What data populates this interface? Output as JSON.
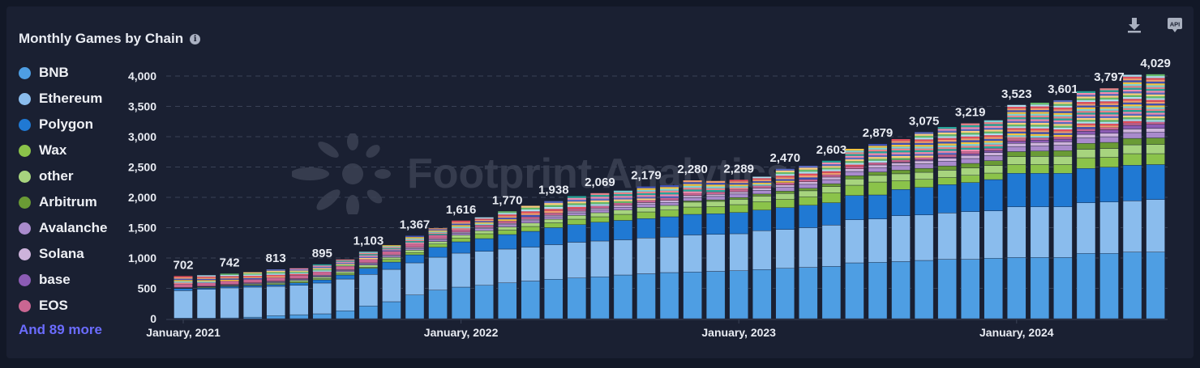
{
  "header": {
    "title": "Monthly Games by Chain",
    "info_icon": "info-icon",
    "download_icon": "download-icon",
    "api_icon": "api-icon",
    "api_label": "API"
  },
  "watermark": "Footprint Analytics",
  "legend": {
    "items": [
      {
        "label": "BNB",
        "color": "#4e9ee3"
      },
      {
        "label": "Ethereum",
        "color": "#8abced"
      },
      {
        "label": "Polygon",
        "color": "#2079d3"
      },
      {
        "label": "Wax",
        "color": "#8bc34a"
      },
      {
        "label": "other",
        "color": "#a7d47e"
      },
      {
        "label": "Arbitrum",
        "color": "#6a9b35"
      },
      {
        "label": "Avalanche",
        "color": "#a98bcc"
      },
      {
        "label": "Solana",
        "color": "#cdb3db"
      },
      {
        "label": "base",
        "color": "#8c5cb5"
      },
      {
        "label": "EOS",
        "color": "#c96692"
      }
    ],
    "more_label": "And 89 more"
  },
  "chart_data": {
    "type": "bar",
    "stacked": true,
    "title": "Monthly Games by Chain",
    "x_tick_labels": [
      "January, 2021",
      "January, 2022",
      "January, 2023",
      "January, 2024"
    ],
    "categories": [
      "2021-01",
      "2021-02",
      "2021-03",
      "2021-04",
      "2021-05",
      "2021-06",
      "2021-07",
      "2021-08",
      "2021-09",
      "2021-10",
      "2021-11",
      "2021-12",
      "2022-01",
      "2022-02",
      "2022-03",
      "2022-04",
      "2022-05",
      "2022-06",
      "2022-07",
      "2022-08",
      "2022-09",
      "2022-10",
      "2022-11",
      "2022-12",
      "2023-01",
      "2023-02",
      "2023-03",
      "2023-04",
      "2023-05",
      "2023-06",
      "2023-07",
      "2023-08",
      "2023-09",
      "2023-10",
      "2023-11",
      "2023-12",
      "2024-01",
      "2024-02",
      "2024-03",
      "2024-04",
      "2024-05",
      "2024-06",
      "2024-07"
    ],
    "y_ticks": [
      "0",
      "500",
      "1,000",
      "1,500",
      "2,000",
      "2,500",
      "3,000",
      "3,500",
      "4,000"
    ],
    "ylim": [
      0,
      4000
    ],
    "grid": true,
    "legend_position": "left",
    "totals": [
      702,
      715,
      742,
      765,
      813,
      830,
      895,
      975,
      1103,
      1210,
      1367,
      1490,
      1616,
      1670,
      1770,
      1860,
      1938,
      2020,
      2069,
      2110,
      2179,
      2200,
      2280,
      2270,
      2289,
      2340,
      2470,
      2520,
      2603,
      2800,
      2879,
      2960,
      3075,
      3160,
      3219,
      3270,
      3523,
      3560,
      3601,
      3750,
      3797,
      4020,
      4029
    ],
    "total_labels": [
      "702",
      "742",
      "813",
      "895",
      "1,103",
      "1,367",
      "1,616",
      "1,770",
      "1,938",
      "2,069",
      "2,179",
      "2,280",
      "2,289",
      "2,470",
      "2,603",
      "2,879",
      "3,075",
      "3,219",
      "3,523",
      "3,601",
      "3,797",
      "4,029"
    ],
    "series": [
      {
        "name": "BNB",
        "values": [
          10,
          10,
          12,
          25,
          50,
          65,
          80,
          130,
          210,
          280,
          390,
          470,
          520,
          550,
          590,
          620,
          650,
          670,
          690,
          720,
          740,
          760,
          770,
          780,
          790,
          810,
          830,
          845,
          862,
          920,
          929,
          942,
          960,
          978,
          978,
          996,
          1009,
          1009,
          1009,
          1076,
          1076,
          1098,
          1098
        ]
      },
      {
        "name": "Ethereum",
        "values": [
          452,
          474,
          495,
          495,
          483,
          486,
          507,
          523,
          519,
          533,
          530,
          543,
          560,
          561,
          557,
          560,
          570,
          590,
          590,
          580,
          590,
          585,
          610,
          610,
          610,
          640,
          640,
          655,
          680,
          711,
          715,
          756,
          751,
          764,
          786,
          782,
          835,
          835,
          835,
          835,
          848,
          844,
          866
        ]
      },
      {
        "name": "Polygon",
        "values": [
          36,
          21,
          23,
          25,
          27,
          39,
          53,
          67,
          102,
          120,
          133,
          165,
          187,
          209,
          240,
          260,
          280,
          290,
          310,
          320,
          320,
          335,
          340,
          340,
          350,
          340,
          360,
          370,
          369,
          400,
          396,
          431,
          453,
          467,
          480,
          515,
          552,
          552,
          552,
          565,
          574,
          587,
          576
        ]
      },
      {
        "name": "Wax",
        "values": [
          2,
          10,
          5,
          10,
          15,
          20,
          20,
          25,
          19,
          42,
          37,
          52,
          63,
          80,
          73,
          80,
          80,
          90,
          90,
          100,
          110,
          110,
          120,
          120,
          130,
          140,
          140,
          140,
          165,
          169,
          213,
          147,
          134,
          120,
          120,
          107,
          146,
          146,
          146,
          177,
          164,
          191,
          180
        ]
      },
      {
        "name": "other",
        "values": [
          5,
          8,
          12,
          15,
          19,
          22,
          26,
          29,
          33,
          36,
          40,
          43,
          46,
          50,
          53,
          57,
          60,
          64,
          67,
          71,
          74,
          77,
          81,
          84,
          88,
          91,
          95,
          98,
          102,
          105,
          109,
          112,
          115,
          119,
          122,
          126,
          129,
          133,
          136,
          140,
          143,
          146,
          150
        ]
      },
      {
        "name": "Arbitrum",
        "values": [
          0,
          0,
          0,
          0,
          0,
          0,
          0,
          0,
          0,
          0,
          0,
          0,
          0,
          0,
          0,
          0,
          0,
          0,
          0,
          0,
          0,
          0,
          20,
          25,
          29,
          34,
          38,
          43,
          47,
          52,
          56,
          61,
          65,
          70,
          74,
          79,
          83,
          88,
          92,
          97,
          101,
          106,
          110
        ]
      },
      {
        "name": "Avalanche",
        "values": [
          5,
          7,
          9,
          12,
          14,
          16,
          18,
          20,
          23,
          25,
          27,
          29,
          31,
          34,
          36,
          38,
          40,
          42,
          45,
          47,
          49,
          51,
          53,
          56,
          58,
          60,
          62,
          64,
          67,
          69,
          71,
          73,
          75,
          78,
          80,
          82,
          84,
          86,
          89,
          91,
          93,
          95,
          97
        ]
      },
      {
        "name": "Solana",
        "values": [
          3,
          4,
          6,
          7,
          9,
          10,
          11,
          13,
          14,
          16,
          17,
          18,
          20,
          21,
          23,
          24,
          25,
          27,
          28,
          30,
          31,
          32,
          34,
          35,
          37,
          38,
          39,
          41,
          42,
          44,
          45,
          46,
          48,
          49,
          51,
          52,
          53,
          55,
          56,
          58,
          59,
          60,
          62
        ]
      },
      {
        "name": "base",
        "values": [
          0,
          0,
          0,
          0,
          0,
          0,
          0,
          0,
          0,
          0,
          0,
          0,
          0,
          0,
          0,
          0,
          0,
          0,
          0,
          0,
          0,
          0,
          0,
          0,
          0,
          0,
          0,
          0,
          0,
          0,
          0,
          10,
          15,
          20,
          25,
          30,
          35,
          40,
          45,
          50,
          55,
          60,
          65
        ]
      },
      {
        "name": "EOS",
        "values": [
          60,
          60,
          60,
          60,
          60,
          60,
          60,
          60,
          60,
          60,
          60,
          60,
          40,
          40,
          40,
          40,
          40,
          40,
          40,
          40,
          40,
          40,
          40,
          40,
          40,
          40,
          40,
          40,
          40,
          40,
          40,
          40,
          40,
          40,
          40,
          40,
          40,
          40,
          40,
          40,
          40,
          40,
          40
        ]
      },
      {
        "name": "And 89 more",
        "values": [
          129,
          121,
          120,
          116,
          136,
          112,
          120,
          108,
          123,
          98,
          133,
          110,
          149,
          125,
          158,
          181,
          193,
          207,
          209,
          202,
          225,
          210,
          212,
          180,
          157,
          147,
          226,
          224,
          229,
          290,
          305,
          342,
          419,
          455,
          463,
          461,
          557,
          576,
          601,
          621,
          644,
          793,
          785
        ]
      }
    ],
    "remainder_palette": [
      "#e8848a",
      "#7fd3d6",
      "#f5c542",
      "#3f51b5",
      "#f0a070",
      "#e04f5f",
      "#b0e0f0",
      "#66bb6a",
      "#ffd180",
      "#5c6bc0",
      "#f48fb1",
      "#26a69a"
    ]
  }
}
